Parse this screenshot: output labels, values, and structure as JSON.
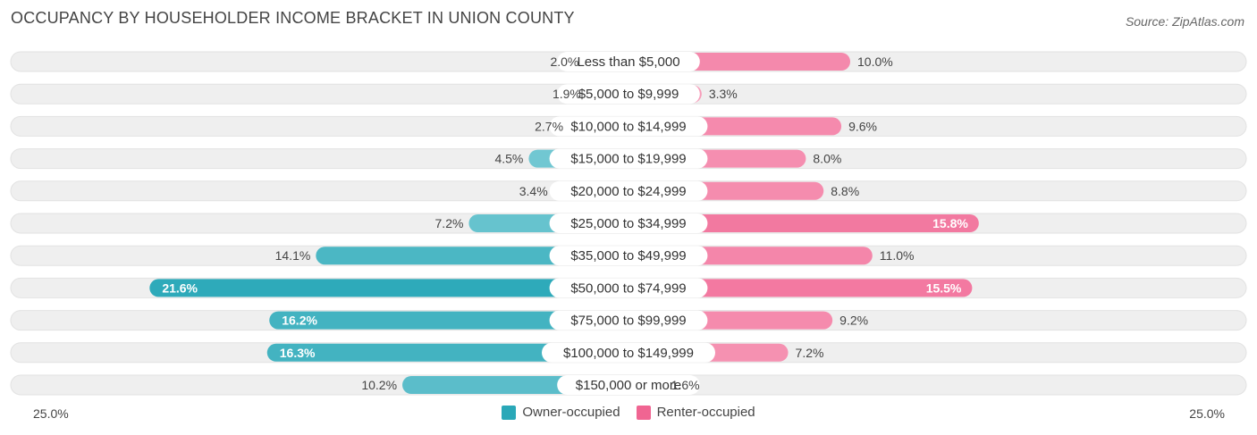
{
  "title": "OCCUPANCY BY HOUSEHOLDER INCOME BRACKET IN UNION COUNTY",
  "source": "Source: ZipAtlas.com",
  "colors": {
    "owner_light": "#82cfd8",
    "owner_dark": "#2aa8b8",
    "renter_light": "#f8a5c0",
    "renter_dark": "#f06592",
    "row_bg": "#efefef",
    "row_border": "#e2e2e2"
  },
  "chart_data": {
    "type": "bar",
    "orientation": "horizontal-diverging",
    "categories": [
      "Less than $5,000",
      "$5,000 to $9,999",
      "$10,000 to $14,999",
      "$15,000 to $19,999",
      "$20,000 to $24,999",
      "$25,000 to $34,999",
      "$35,000 to $49,999",
      "$50,000 to $74,999",
      "$75,000 to $99,999",
      "$100,000 to $149,999",
      "$150,000 or more"
    ],
    "series": [
      {
        "name": "Owner-occupied",
        "values": [
          2.0,
          1.9,
          2.7,
          4.5,
          3.4,
          7.2,
          14.1,
          21.6,
          16.2,
          16.3,
          10.2
        ],
        "labels": [
          "2.0%",
          "1.9%",
          "2.7%",
          "4.5%",
          "3.4%",
          "7.2%",
          "14.1%",
          "21.6%",
          "16.2%",
          "16.3%",
          "10.2%"
        ]
      },
      {
        "name": "Renter-occupied",
        "values": [
          10.0,
          3.3,
          9.6,
          8.0,
          8.8,
          15.8,
          11.0,
          15.5,
          9.2,
          7.2,
          1.6
        ],
        "labels": [
          "10.0%",
          "3.3%",
          "9.6%",
          "8.0%",
          "8.8%",
          "15.8%",
          "11.0%",
          "15.5%",
          "9.2%",
          "7.2%",
          "1.6%"
        ]
      }
    ],
    "xlim": [
      -25,
      25
    ],
    "axis_left_label": "25.0%",
    "axis_right_label": "25.0%"
  },
  "legend": {
    "owner": "Owner-occupied",
    "renter": "Renter-occupied"
  }
}
